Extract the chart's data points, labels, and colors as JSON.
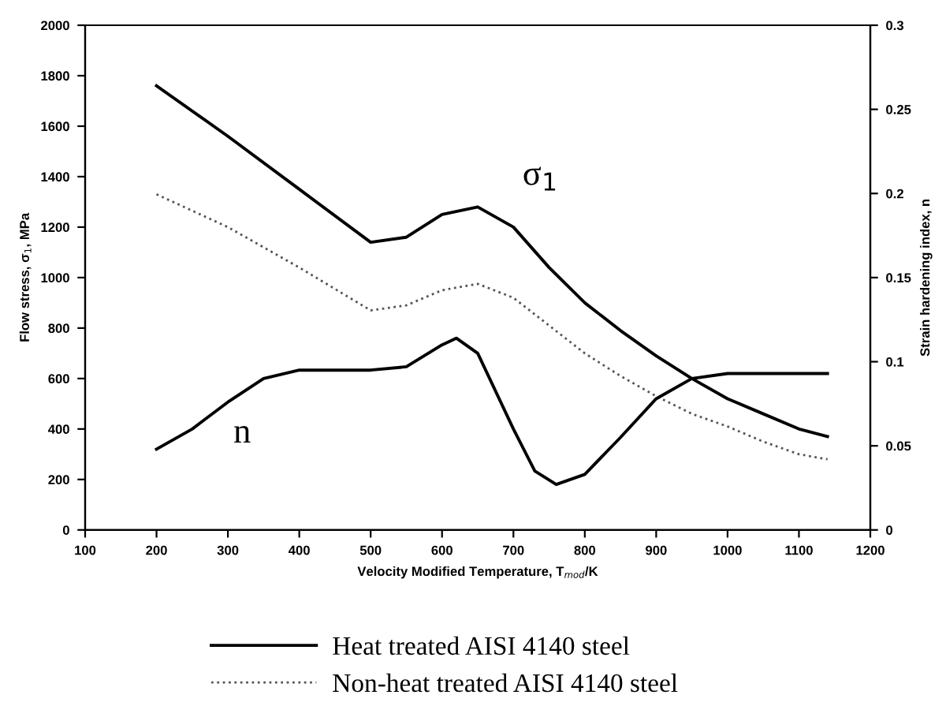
{
  "chart_data": {
    "type": "line",
    "xlabel": "Velocity Modified Temperature, T$_{mod}$/K",
    "ylabel": "Flow stress, σ$_{1}$, MPa",
    "y2label": "Strain hardening index, n",
    "xlim": [
      100,
      1200
    ],
    "xticks": [
      100,
      200,
      300,
      400,
      500,
      600,
      700,
      800,
      900,
      1000,
      1100,
      1200
    ],
    "ylim": [
      0,
      2000
    ],
    "yticks": [
      0,
      200,
      400,
      600,
      800,
      1000,
      1200,
      1400,
      1600,
      1800,
      2000
    ],
    "y2lim": [
      0,
      0.3
    ],
    "y2ticks": [
      0,
      0.05,
      0.1,
      0.15,
      0.2,
      0.25,
      0.3
    ],
    "legend": "bottom",
    "grid": false,
    "marker": "none",
    "series": [
      {
        "name": "Heat treated AISI 4140 steel",
        "color": "#000000",
        "line_style": "solid",
        "x": [
          200,
          300,
          400,
          500,
          550,
          600,
          650,
          700,
          750,
          800,
          850,
          900,
          950,
          1000,
          1050,
          1100,
          1140
        ],
        "values": [
          1760,
          1560,
          1350,
          1140,
          1160,
          1250,
          1280,
          1200,
          1040,
          900,
          790,
          690,
          600,
          520,
          460,
          400,
          370
        ]
      },
      {
        "name": "Non-heat treated AISI 4140 steel",
        "color": "#555555",
        "line_style": "dotted",
        "x": [
          200,
          300,
          400,
          500,
          550,
          600,
          650,
          700,
          750,
          800,
          850,
          900,
          950,
          1000,
          1050,
          1100,
          1140
        ],
        "values": [
          1330,
          1200,
          1040,
          870,
          890,
          950,
          975,
          920,
          810,
          700,
          610,
          530,
          460,
          410,
          350,
          300,
          280
        ]
      },
      {
        "color": "#000000",
        "line_style": "solid",
        "axis": "y2",
        "x": [
          200,
          250,
          300,
          350,
          400,
          500,
          550,
          600,
          620,
          650,
          700,
          730,
          760,
          800,
          850,
          900,
          950,
          1000,
          1140
        ],
        "values": [
          0.048,
          0.06,
          0.076,
          0.09,
          0.095,
          0.095,
          0.097,
          0.11,
          0.114,
          0.105,
          0.06,
          0.035,
          0.027,
          0.033,
          0.055,
          0.078,
          0.09,
          0.093,
          0.093
        ]
      }
    ],
    "annotations": [
      "σ$_{1}$",
      "n"
    ]
  }
}
